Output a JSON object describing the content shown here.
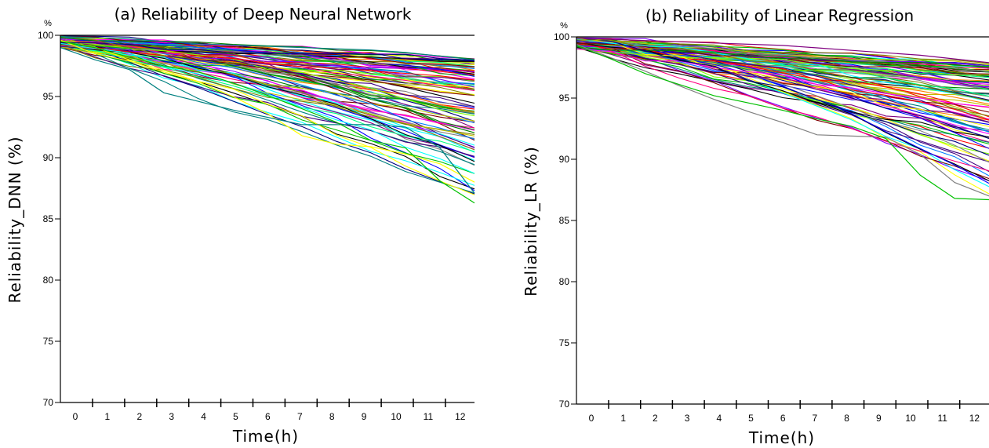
{
  "palette": [
    "#000000",
    "#ff0000",
    "#00c000",
    "#0000ff",
    "#ffff00",
    "#ff00ff",
    "#00ffff",
    "#808080",
    "#800000",
    "#008000",
    "#000080",
    "#808000",
    "#800080",
    "#008080",
    "#ff8000",
    "#00ff80",
    "#8000ff",
    "#0080ff",
    "#ff0080",
    "#80ff00",
    "#400080",
    "#c0c000"
  ],
  "chart_data": [
    {
      "type": "line",
      "title": "(a) Reliability of Deep Neural Network",
      "xlabel": "Time(h)",
      "ylabel": "Reliability_DNN (%)",
      "yunit": "%",
      "categories": [
        "0",
        "1",
        "2",
        "3",
        "4",
        "5",
        "6",
        "7",
        "8",
        "9",
        "10",
        "11",
        "12"
      ],
      "ylim": [
        70,
        100
      ],
      "yticks": [
        70,
        75,
        80,
        85,
        90,
        95,
        100
      ],
      "grid": false,
      "series_count": 100,
      "end_range": [
        86.2,
        98.1
      ],
      "highlight_series": [
        {
          "color": "#ffff00",
          "values": [
            99.6,
            98.5,
            97.9,
            97.0,
            96.2,
            95.0,
            93.6,
            91.8,
            91.1,
            90.9,
            90.3,
            89.5,
            88.0
          ]
        },
        {
          "color": "#008080",
          "values": [
            99.0,
            98.0,
            97.2,
            95.3,
            94.6,
            93.9,
            93.3,
            92.7,
            92.7,
            92.7,
            92.5,
            90.8,
            87.1
          ]
        },
        {
          "color": "#00c000",
          "values": [
            99.5,
            99.0,
            98.2,
            97.5,
            97.0,
            96.1,
            95.1,
            94.0,
            92.9,
            91.4,
            90.8,
            88.1,
            86.3
          ]
        },
        {
          "color": "#008080",
          "values": [
            99.9,
            99.8,
            99.7,
            99.5,
            99.3,
            99.2,
            99.1,
            99.0,
            98.9,
            98.8,
            98.6,
            98.3,
            98.0
          ]
        }
      ]
    },
    {
      "type": "line",
      "title": "(b) Reliability of Linear Regression",
      "xlabel": "Time(h)",
      "ylabel": "Reliability_LR (%)",
      "yunit": "%",
      "categories": [
        "0",
        "1",
        "2",
        "3",
        "4",
        "5",
        "6",
        "7",
        "8",
        "9",
        "10",
        "11",
        "12"
      ],
      "ylim": [
        70,
        100
      ],
      "yticks": [
        70,
        75,
        80,
        85,
        90,
        95,
        100
      ],
      "grid": false,
      "series_count": 100,
      "end_range": [
        86.5,
        97.9
      ],
      "highlight_series": [
        {
          "color": "#808080",
          "values": [
            99.4,
            98.3,
            97.2,
            96.0,
            94.9,
            93.9,
            93.0,
            92.0,
            91.9,
            91.8,
            90.4,
            88.1,
            87.0
          ]
        },
        {
          "color": "#00c000",
          "values": [
            99.3,
            98.2,
            97.0,
            96.1,
            95.2,
            94.6,
            94.0,
            93.3,
            92.7,
            91.7,
            88.7,
            86.8,
            86.7
          ]
        },
        {
          "color": "#800080",
          "values": [
            99.9,
            99.8,
            99.7,
            99.6,
            99.5,
            99.4,
            99.3,
            99.1,
            98.9,
            98.7,
            98.5,
            98.2,
            97.9
          ]
        }
      ]
    }
  ]
}
